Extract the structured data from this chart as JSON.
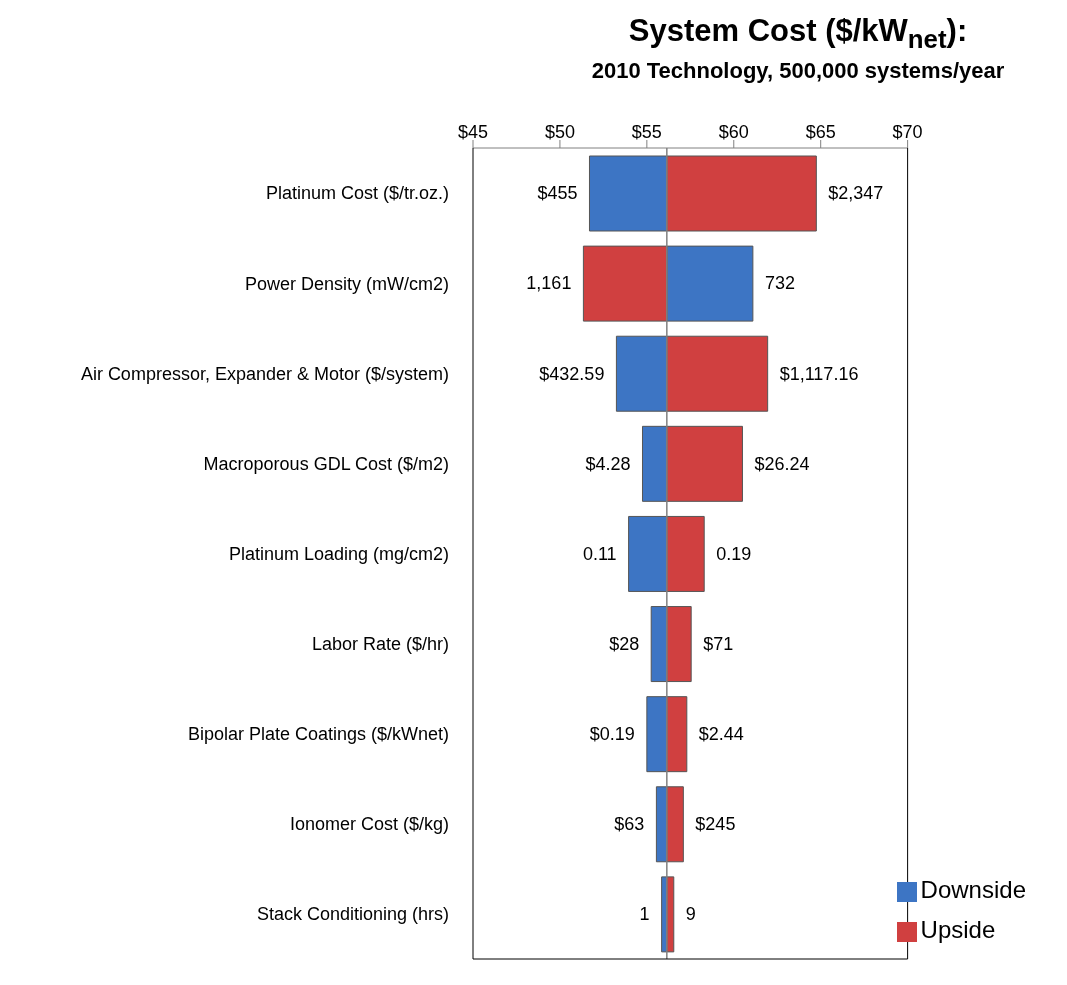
{
  "chart_data": {
    "type": "bar",
    "orientation": "horizontal",
    "title": "System Cost ($/kW$_{net}$):",
    "subtitle": "2010 Technology, 500,000 systems/year",
    "categories": [
      "Platinum Cost ($/tr.oz.)",
      "Power Density (mW/cm2)",
      "Air Compressor, Expander & Motor ($/system)",
      "Macroporous GDL Cost ($/m2)",
      "Platinum Loading (mg/cm2)",
      "Labor Rate ($/hr)",
      "Bipolar Plate Coatings ($/kWnet)",
      "Ionomer Cost ($/kg)",
      "Stack Conditioning (hrs)"
    ],
    "series": [
      {
        "name": "Downside",
        "color": "#3d75c4",
        "base": [
          51.7,
          56.15,
          53.25,
          54.75,
          53.95,
          55.25,
          55.0,
          55.55,
          55.85
        ],
        "values": [
          4.45,
          4.95,
          2.9,
          1.4,
          2.2,
          0.9,
          1.15,
          0.6,
          0.3
        ]
      },
      {
        "name": "Upside",
        "color": "#d04040",
        "base": [
          56.15,
          51.35,
          56.15,
          56.15,
          56.15,
          56.15,
          56.15,
          56.15,
          56.15
        ],
        "values": [
          8.6,
          4.8,
          5.8,
          4.35,
          2.15,
          1.4,
          1.15,
          0.95,
          0.4
        ]
      }
    ],
    "annotations": [
      {
        "text": "$455",
        "x": 51.7,
        "y": "Platinum Cost ($/tr.oz.)"
      },
      {
        "text": "$2,347",
        "x": 64.75,
        "y": "Platinum Cost ($/tr.oz.)"
      },
      {
        "text": "1,161",
        "x": 51.35,
        "y": "Power Density (mW/cm2)"
      },
      {
        "text": "732",
        "x": 61.1,
        "y": "Power Density (mW/cm2)"
      },
      {
        "text": "$432.59",
        "x": 53.25,
        "y": "Air Compressor, Expander & Motor ($/system)"
      },
      {
        "text": "$1,117.16",
        "x": 61.95,
        "y": "Air Compressor, Expander & Motor ($/system)"
      },
      {
        "text": "$4.28",
        "x": 54.75,
        "y": "Macroporous GDL Cost ($/m2)"
      },
      {
        "text": "$26.24",
        "x": 60.5,
        "y": "Macroporous GDL Cost ($/m2)"
      },
      {
        "text": "0.11",
        "x": 53.95,
        "y": "Platinum Loading (mg/cm2)"
      },
      {
        "text": "0.19",
        "x": 58.3,
        "y": "Platinum Loading (mg/cm2)"
      },
      {
        "text": "$28",
        "x": 55.25,
        "y": "Labor Rate ($/hr)"
      },
      {
        "text": "$71",
        "x": 57.55,
        "y": "Labor Rate ($/hr)"
      },
      {
        "text": "$0.19",
        "x": 55.0,
        "y": "Bipolar Plate Coatings ($/kWnet)"
      },
      {
        "text": "$2.44",
        "x": 57.3,
        "y": "Bipolar Plate Coatings ($/kWnet)"
      },
      {
        "text": "$63",
        "x": 55.55,
        "y": "Ionomer Cost ($/kg)"
      },
      {
        "text": "$245",
        "x": 57.1,
        "y": "Ionomer Cost ($/kg)"
      },
      {
        "text": "1",
        "x": 55.85,
        "y": "Stack Conditioning (hrs)"
      },
      {
        "text": "9",
        "x": 56.55,
        "y": "Stack Conditioning (hrs)"
      }
    ],
    "xlim": [
      45,
      70
    ],
    "xticks": [
      {
        "value": 45,
        "label": "$45"
      },
      {
        "value": 50,
        "label": "$50"
      },
      {
        "value": 55,
        "label": "$55"
      },
      {
        "value": 60,
        "label": "$60"
      },
      {
        "value": 65,
        "label": "$65"
      },
      {
        "value": 70,
        "label": "$70"
      }
    ],
    "ref_lines": [
      {
        "axis": "x",
        "value": 56.15,
        "color": "#808080"
      }
    ],
    "legend": "bottom right"
  }
}
